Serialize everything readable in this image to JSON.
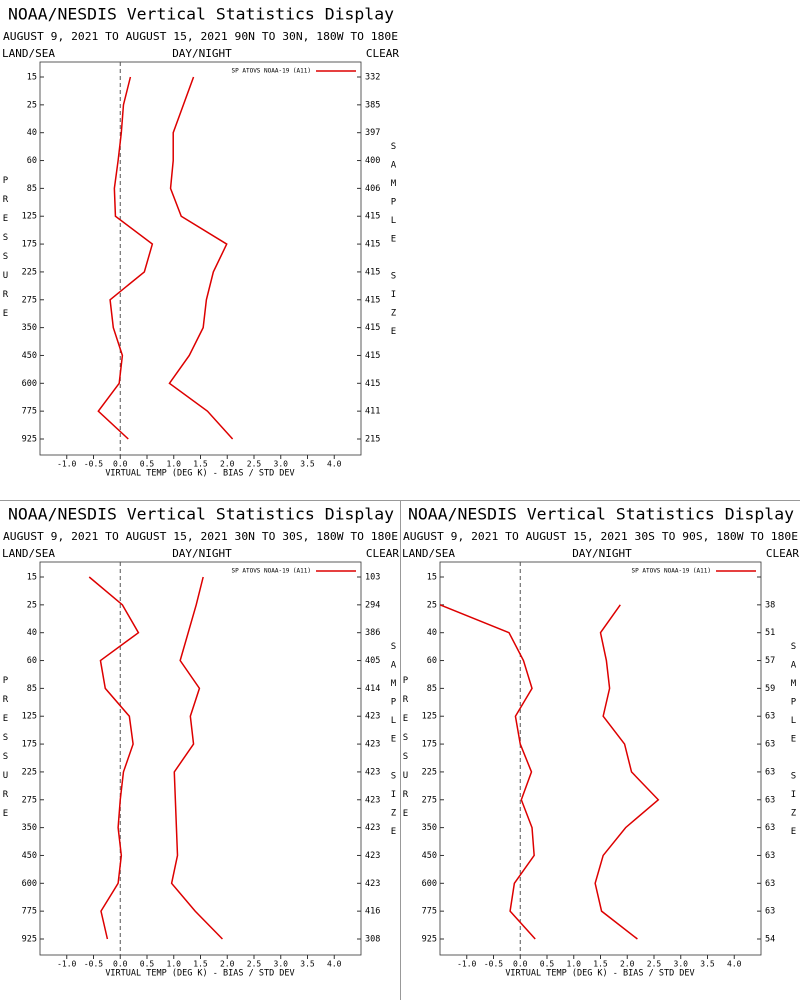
{
  "chart_data": [
    {
      "type": "line",
      "title": "NOAA/NESDIS Vertical Statistics Display",
      "subtitle": "AUGUST 9, 2021 TO AUGUST 15, 2021  90N TO 30N, 180W TO 180E",
      "left_header": "LAND/SEA",
      "center_header": "DAY/NIGHT",
      "right_header": "CLEAR",
      "y_label": "PRESSURE",
      "y2_label": "SAMPLE SIZE",
      "x_label": "VIRTUAL TEMP (DEG K) - BIAS / STD DEV",
      "categories": [
        15,
        25,
        40,
        60,
        85,
        125,
        175,
        225,
        275,
        350,
        450,
        600,
        775,
        925
      ],
      "series": [
        {
          "name": "SP ATOVS NOAA-19 (A11)",
          "color": "#dd0000",
          "values": [
            0.19,
            0.06,
            0.02,
            -0.04,
            -0.11,
            -0.09,
            0.6,
            0.45,
            -0.19,
            -0.13,
            0.04,
            -0.02,
            -0.41,
            0.15
          ],
          "std_values": [
            1.37,
            1.18,
            0.99,
            0.99,
            0.94,
            1.14,
            1.99,
            1.74,
            1.61,
            1.55,
            1.29,
            0.92,
            1.63,
            2.1
          ]
        }
      ],
      "sample_size": [
        332,
        385,
        397,
        400,
        406,
        415,
        415,
        415,
        415,
        415,
        415,
        415,
        411,
        215
      ],
      "xlim": [
        -1.5,
        4.5
      ],
      "xticks": [
        {
          "value": -1,
          "label": "-1.0"
        },
        {
          "value": -0.5,
          "label": "-0.5"
        },
        {
          "value": 0,
          "label": "0.0"
        },
        {
          "value": 0.5,
          "label": "0.5"
        },
        {
          "value": 1,
          "label": "1.0"
        },
        {
          "value": 1.5,
          "label": "1.5"
        },
        {
          "value": 2,
          "label": "2.0"
        },
        {
          "value": 2.5,
          "label": "2.5"
        },
        {
          "value": 3,
          "label": "3.0"
        },
        {
          "value": 3.5,
          "label": "3.5"
        },
        {
          "value": 4,
          "label": "4.0"
        }
      ],
      "zero_line": true,
      "legend": "upper right"
    },
    {
      "type": "line",
      "title": "NOAA/NESDIS Vertical Statistics Display",
      "subtitle": "AUGUST 9, 2021 TO AUGUST 15, 2021  30N TO 30S, 180W TO 180E",
      "left_header": "LAND/SEA",
      "center_header": "DAY/NIGHT",
      "right_header": "CLEAR",
      "y_label": "PRESSURE",
      "y2_label": "SAMPLE SIZE",
      "x_label": "VIRTUAL TEMP (DEG K) - BIAS / STD DEV",
      "categories": [
        15,
        25,
        40,
        60,
        85,
        125,
        175,
        225,
        275,
        350,
        450,
        600,
        775,
        925
      ],
      "series": [
        {
          "name": "SP ATOVS NOAA-19 (A11)",
          "color": "#dd0000",
          "values": [
            -0.58,
            0.04,
            0.34,
            -0.37,
            -0.28,
            0.17,
            0.24,
            0.06,
            0,
            -0.04,
            0.02,
            -0.04,
            -0.36,
            -0.24
          ],
          "std_values": [
            1.55,
            1.42,
            1.27,
            1.12,
            1.48,
            1.31,
            1.37,
            1.01,
            1.03,
            1.05,
            1.07,
            0.96,
            1.4,
            1.91
          ]
        }
      ],
      "sample_size": [
        103,
        294,
        386,
        405,
        414,
        423,
        423,
        423,
        423,
        423,
        423,
        423,
        416,
        308
      ],
      "xlim": [
        -1.5,
        4.5
      ],
      "xticks": [
        {
          "value": -1,
          "label": "-1.0"
        },
        {
          "value": -0.5,
          "label": "-0.5"
        },
        {
          "value": 0,
          "label": "0.0"
        },
        {
          "value": 0.5,
          "label": "0.5"
        },
        {
          "value": 1,
          "label": "1.0"
        },
        {
          "value": 1.5,
          "label": "1.5"
        },
        {
          "value": 2,
          "label": "2.0"
        },
        {
          "value": 2.5,
          "label": "2.5"
        },
        {
          "value": 3,
          "label": "3.0"
        },
        {
          "value": 3.5,
          "label": "3.5"
        },
        {
          "value": 4,
          "label": "4.0"
        }
      ],
      "zero_line": true,
      "legend": "upper right"
    },
    {
      "type": "line",
      "title": "NOAA/NESDIS Vertical Statistics Display",
      "subtitle": "AUGUST 9, 2021 TO AUGUST 15, 2021  30S TO 90S, 180W TO 180E",
      "left_header": "LAND/SEA",
      "center_header": "DAY/NIGHT",
      "right_header": "CLEAR",
      "y_label": "PRESSURE",
      "y2_label": "SAMPLE SIZE",
      "x_label": "VIRTUAL TEMP (DEG K) - BIAS / STD DEV",
      "categories": [
        15,
        25,
        40,
        60,
        85,
        125,
        175,
        225,
        275,
        350,
        450,
        600,
        775,
        925
      ],
      "series": [
        {
          "name": "SP ATOVS NOAA-19 (A11)",
          "color": "#dd0000",
          "values": [
            null,
            -1.5,
            -0.21,
            0.06,
            0.22,
            -0.09,
            0,
            0.21,
            0.02,
            0.22,
            0.26,
            -0.11,
            -0.19,
            0.28
          ],
          "std_values": [
            null,
            1.87,
            1.5,
            1.61,
            1.67,
            1.55,
            1.95,
            2.08,
            2.58,
            1.97,
            1.55,
            1.4,
            1.52,
            2.19
          ]
        }
      ],
      "sample_size": [
        null,
        38,
        51,
        57,
        59,
        63,
        63,
        63,
        63,
        63,
        63,
        63,
        63,
        54
      ],
      "xlim": [
        -1.5,
        4.5
      ],
      "xticks": [
        {
          "value": -1,
          "label": "-1.0"
        },
        {
          "value": -0.5,
          "label": "-0.5"
        },
        {
          "value": 0,
          "label": "0.0"
        },
        {
          "value": 0.5,
          "label": "0.5"
        },
        {
          "value": 1,
          "label": "1.0"
        },
        {
          "value": 1.5,
          "label": "1.5"
        },
        {
          "value": 2,
          "label": "2.0"
        },
        {
          "value": 2.5,
          "label": "2.5"
        },
        {
          "value": 3,
          "label": "3.0"
        },
        {
          "value": 3.5,
          "label": "3.5"
        },
        {
          "value": 4,
          "label": "4.0"
        }
      ],
      "zero_line": true,
      "legend": "upper right"
    }
  ]
}
